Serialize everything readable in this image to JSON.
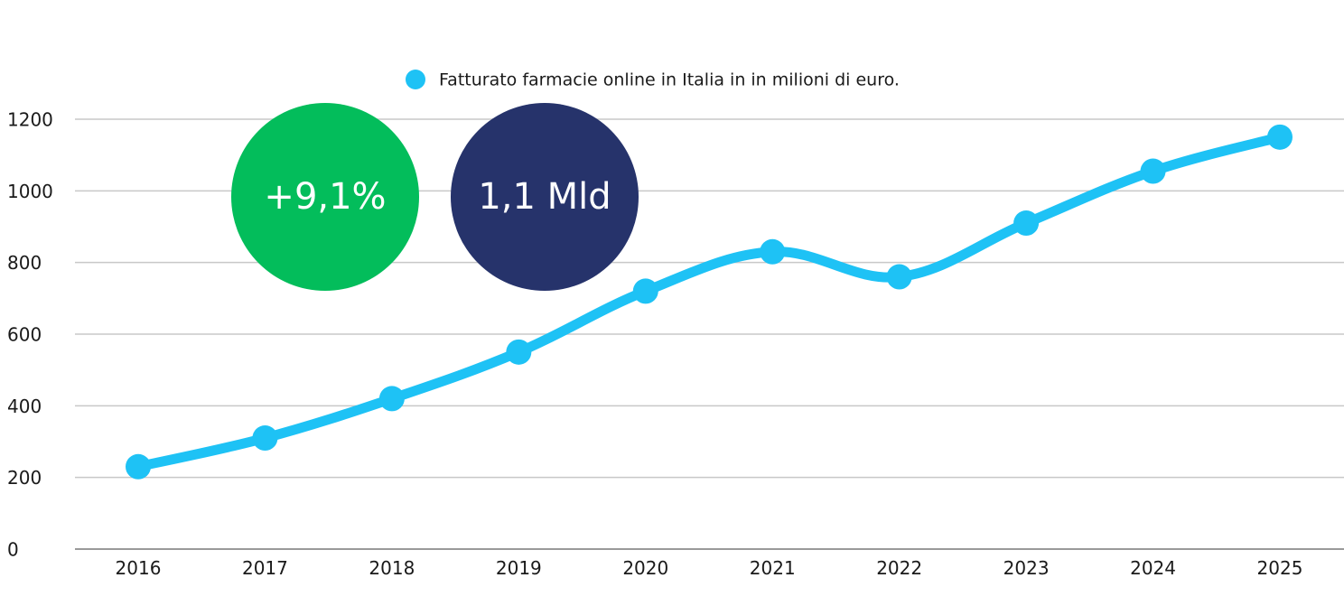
{
  "chart_data": {
    "type": "line",
    "title": "",
    "xlabel": "",
    "ylabel": "",
    "categories": [
      "2016",
      "2017",
      "2018",
      "2019",
      "2020",
      "2021",
      "2022",
      "2023",
      "2024",
      "2025"
    ],
    "series": [
      {
        "name": "Fatturato farmacie online in Italia in in milioni di euro.",
        "values": [
          230,
          310,
          420,
          550,
          720,
          830,
          760,
          910,
          1055,
          1150
        ],
        "color": "#1ec2f5"
      }
    ],
    "ylim": [
      0,
      1200
    ],
    "yticks": [
      "0",
      "200",
      "400",
      "600",
      "800",
      "1000",
      "1200"
    ],
    "grid": true,
    "legend_position": "top-center",
    "annotations": [
      {
        "text": "+9,1%",
        "color": "#03bd5b"
      },
      {
        "text": "1,1 Mld",
        "color": "#26336b"
      }
    ]
  }
}
